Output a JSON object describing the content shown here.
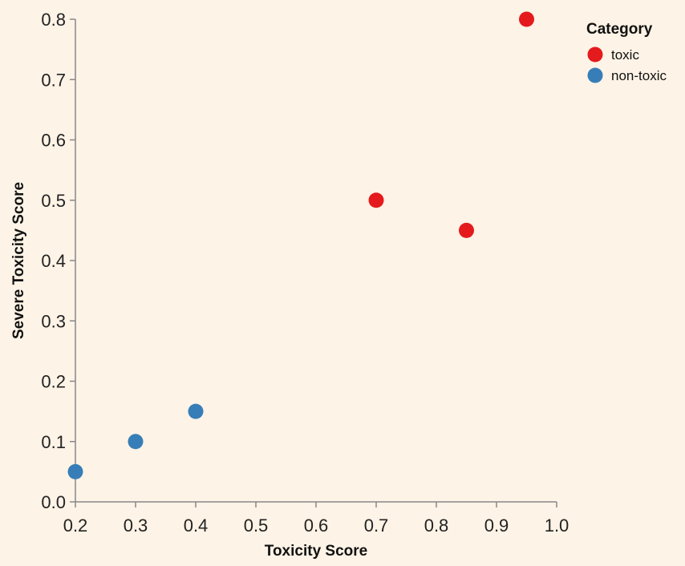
{
  "chart_data": {
    "type": "scatter",
    "xlabel": "Toxicity Score",
    "ylabel": "Severe Toxicity Score",
    "xlim": [
      0.2,
      1.0
    ],
    "ylim": [
      0.0,
      0.8
    ],
    "x_ticks": [
      "0.2",
      "0.3",
      "0.4",
      "0.5",
      "0.6",
      "0.7",
      "0.8",
      "0.9",
      "1.0"
    ],
    "y_ticks": [
      "0.0",
      "0.1",
      "0.2",
      "0.3",
      "0.4",
      "0.5",
      "0.6",
      "0.7",
      "0.8"
    ],
    "grid": false,
    "legend": {
      "title": "Category",
      "placement": "top-right",
      "items": [
        {
          "label": "toxic",
          "color": "#e41a1c"
        },
        {
          "label": "non-toxic",
          "color": "#377eb8"
        }
      ]
    },
    "series": [
      {
        "name": "toxic",
        "color": "#e41a1c",
        "points": [
          {
            "x": 0.7,
            "y": 0.5
          },
          {
            "x": 0.85,
            "y": 0.45
          },
          {
            "x": 0.95,
            "y": 0.8
          }
        ]
      },
      {
        "name": "non-toxic",
        "color": "#377eb8",
        "points": [
          {
            "x": 0.2,
            "y": 0.05
          },
          {
            "x": 0.3,
            "y": 0.1
          },
          {
            "x": 0.4,
            "y": 0.15
          }
        ]
      }
    ]
  }
}
